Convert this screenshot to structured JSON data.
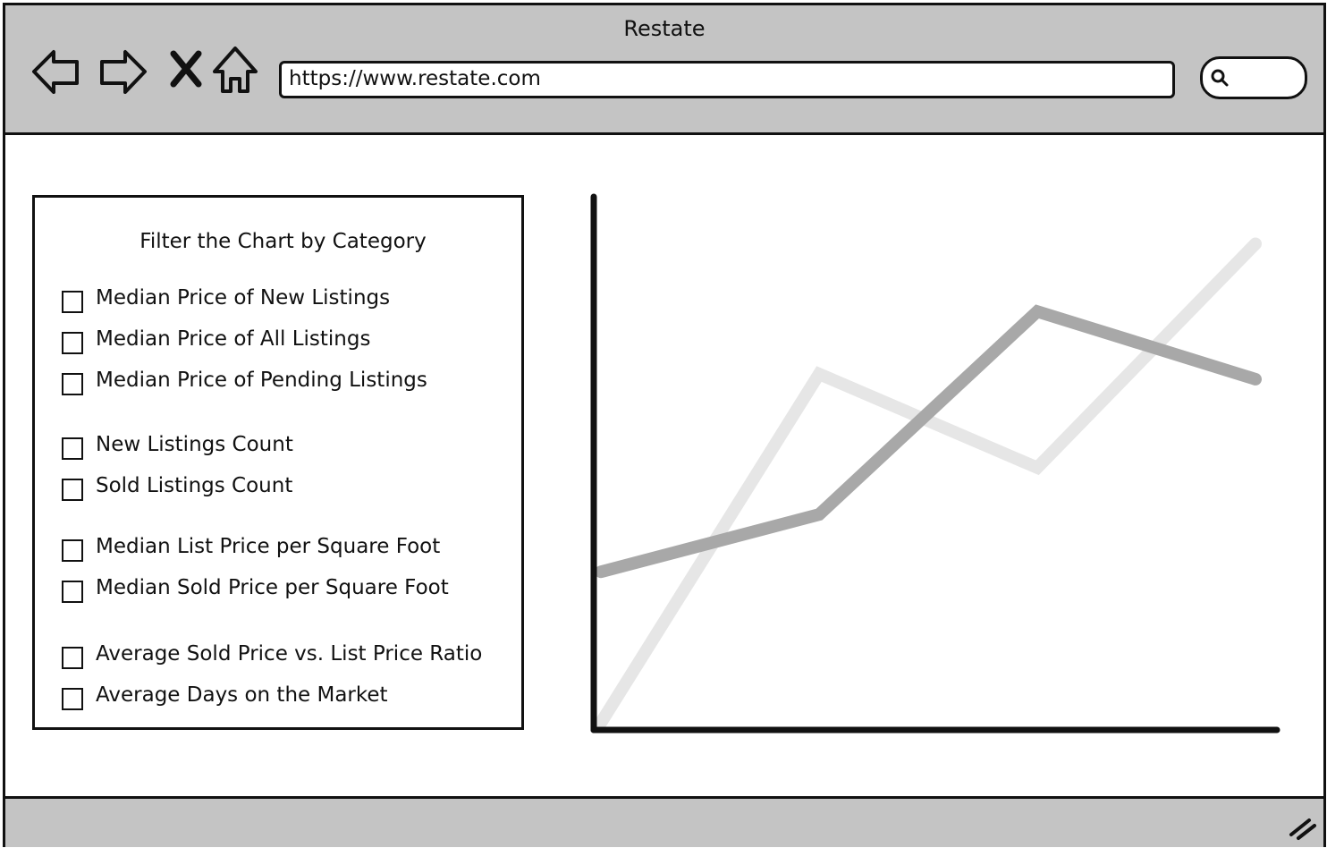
{
  "window": {
    "title": "Restate"
  },
  "toolbar": {
    "back_icon": "back-arrow-icon",
    "forward_icon": "forward-arrow-icon",
    "stop_icon": "close-icon",
    "home_icon": "home-icon",
    "url": "https://www.restate.com",
    "search_icon": "search-icon",
    "search_value": ""
  },
  "filter": {
    "title": "Filter the Chart by Category",
    "items": [
      {
        "label": "Median Price of New Listings",
        "checked": false
      },
      {
        "label": "Median Price of All Listings",
        "checked": false
      },
      {
        "label": "Median Price of Pending Listings",
        "checked": false
      },
      {
        "label": "New Listings Count",
        "checked": false
      },
      {
        "label": "Sold Listings Count",
        "checked": false
      },
      {
        "label": "Median List Price per Square Foot",
        "checked": false
      },
      {
        "label": "Median Sold Price per Square Foot",
        "checked": false
      },
      {
        "label": "Average Sold Price vs. List Price Ratio",
        "checked": false
      },
      {
        "label": "Average Days on the Market",
        "checked": false
      }
    ]
  },
  "chart_data": {
    "type": "line",
    "x": [
      0,
      1,
      2,
      3
    ],
    "ylim": [
      0,
      100
    ],
    "grid": false,
    "series": [
      {
        "values": [
          0,
          67,
          49,
          92
        ],
        "color": "#e6e6e6"
      },
      {
        "values": [
          29,
          40,
          79,
          66
        ],
        "color": "#a8a8a8"
      }
    ]
  },
  "colors": {
    "chrome": "#c4c4c4",
    "border": "#111111",
    "background": "#ffffff"
  },
  "statusbar": {
    "resize_icon": "resize-grip-icon"
  }
}
